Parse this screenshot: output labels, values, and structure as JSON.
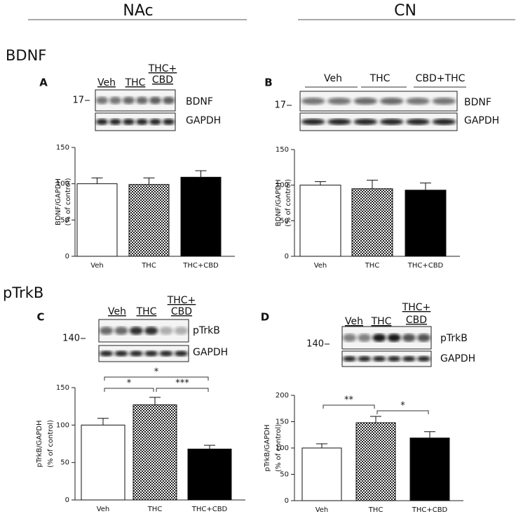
{
  "regions": [
    "NAc",
    "CN"
  ],
  "sections": [
    "BDNF",
    "pTrkB"
  ],
  "blots": [
    {
      "letter": "A",
      "lanes": [
        [
          "Veh"
        ],
        [
          "THC"
        ],
        [
          "THC+",
          "CBD"
        ]
      ],
      "marker": "17",
      "bands": [
        "BDNF",
        "GAPDH"
      ]
    },
    {
      "letter": "B",
      "lanes": [
        [
          "Veh"
        ],
        [
          "THC"
        ],
        [
          "CBD+THC"
        ]
      ],
      "marker": "17",
      "bands": [
        "BDNF",
        "GAPDH"
      ]
    },
    {
      "letter": "C",
      "lanes": [
        [
          "Veh"
        ],
        [
          "THC"
        ],
        [
          "THC+",
          "CBD"
        ]
      ],
      "marker": "140",
      "bands": [
        "pTrkB",
        "GAPDH"
      ]
    },
    {
      "letter": "D",
      "lanes": [
        [
          "Veh"
        ],
        [
          "THC"
        ],
        [
          "THC+",
          "CBD"
        ]
      ],
      "marker": "140",
      "bands": [
        "pTrkB",
        "GAPDH"
      ]
    }
  ],
  "chart_data": [
    {
      "type": "bar",
      "ylabel": "BDNF/GAPDH",
      "ylabel2": "(% of control)",
      "categories": [
        "Veh",
        "THC",
        "THC+CBD"
      ],
      "values": [
        100,
        99,
        109
      ],
      "errors": [
        8,
        9,
        9
      ],
      "fills": [
        "white",
        "checkered",
        "black"
      ],
      "ylim": [
        0,
        150
      ],
      "yticks": [
        0,
        50,
        100,
        150
      ]
    },
    {
      "type": "bar",
      "ylabel": "BDNF/GAPDH",
      "ylabel2": "(% of control)",
      "categories": [
        "Veh",
        "THC",
        "THC+CBD"
      ],
      "values": [
        100,
        95,
        93
      ],
      "errors": [
        5,
        12,
        10
      ],
      "fills": [
        "white",
        "checkered",
        "black"
      ],
      "ylim": [
        0,
        150
      ],
      "yticks": [
        0,
        50,
        100,
        150
      ]
    },
    {
      "type": "bar",
      "ylabel": "pTrkB/GAPDH",
      "ylabel2": "(% of control)",
      "categories": [
        "Veh",
        "THC",
        "THC+CBD"
      ],
      "values": [
        100,
        127,
        68
      ],
      "errors": [
        9,
        10,
        5
      ],
      "fills": [
        "white",
        "checkered",
        "black"
      ],
      "ylim": [
        0,
        150
      ],
      "yticks": [
        0,
        50,
        100,
        150
      ],
      "brackets": [
        {
          "label": "*",
          "between": [
            "Veh",
            "THC"
          ]
        },
        {
          "label": "***",
          "between": [
            "THC",
            "THC+CBD"
          ]
        },
        {
          "label": "*",
          "between": [
            "Veh",
            "THC+CBD"
          ]
        }
      ]
    },
    {
      "type": "bar",
      "ylabel": "pTrkB/GAPDH",
      "ylabel2": "(% of control)",
      "categories": [
        "Veh",
        "THC",
        "THC+CBD"
      ],
      "values": [
        100,
        148,
        119
      ],
      "errors": [
        8,
        12,
        12
      ],
      "fills": [
        "white",
        "checkered",
        "black"
      ],
      "ylim": [
        0,
        200
      ],
      "yticks": [
        0,
        50,
        100,
        150,
        200
      ],
      "brackets": [
        {
          "label": "**",
          "between": [
            "Veh",
            "THC"
          ]
        },
        {
          "label": "*",
          "between": [
            "THC",
            "THC+CBD"
          ]
        }
      ]
    }
  ]
}
